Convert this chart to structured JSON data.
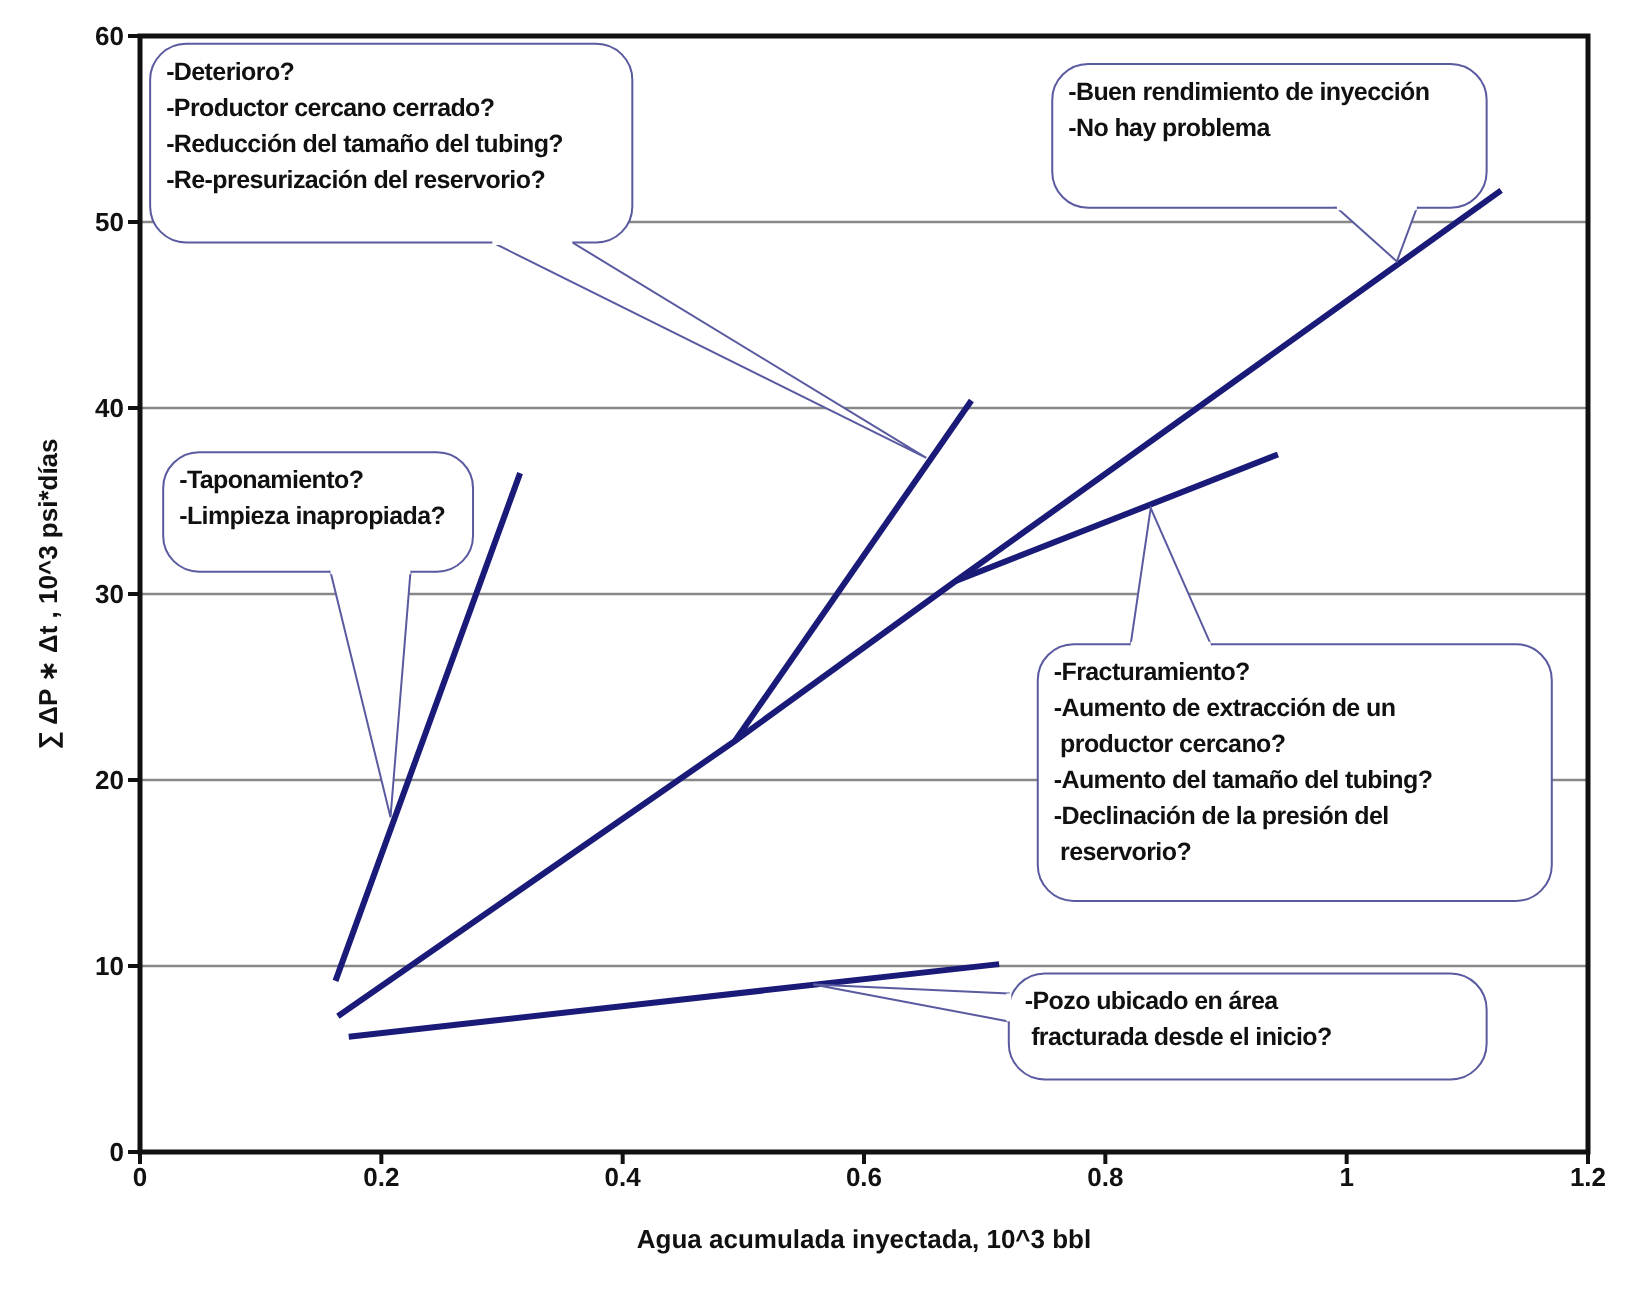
{
  "chart_data": {
    "type": "line",
    "xlabel": "Agua acumulada inyectada, 10^3 bbl",
    "ylabel": "∑ ΔP ∗ Δt , 10^3 psi*días",
    "xlim": [
      0,
      1.2
    ],
    "xticks": [
      0,
      0.2,
      0.4,
      0.6,
      0.8,
      1,
      1.2
    ],
    "ylim": [
      0,
      60
    ],
    "yticks": [
      0,
      10,
      20,
      30,
      40,
      50,
      60
    ],
    "grid": "y",
    "legend": false,
    "marker": "none",
    "line_style": "solid",
    "series": [
      {
        "color": "#1a1a78",
        "x": [
          0.162,
          0.315
        ],
        "values": [
          9.2,
          36.5
        ]
      },
      {
        "color": "#1a1a78",
        "x": [
          0.164,
          0.493,
          0.676,
          1.128
        ],
        "values": [
          7.3,
          22.1,
          30.7,
          51.7
        ]
      },
      {
        "color": "#1a1a78",
        "x": [
          0.493,
          0.689
        ],
        "values": [
          22.1,
          40.4
        ]
      },
      {
        "color": "#1a1a78",
        "x": [
          0.676,
          0.943
        ],
        "values": [
          30.7,
          37.5
        ]
      },
      {
        "color": "#1a1a78",
        "x": [
          0.173,
          0.712
        ],
        "values": [
          6.2,
          10.1
        ]
      }
    ],
    "annotations": [
      "-Deterioro?\n-Productor cercano cerrado?\n-Reducción del tamaño del tubing?\n-Re-presurización del reservorio?",
      "-Taponamiento?\n-Limpieza inapropiada?",
      "-Buen rendimiento de inyección\n-No hay problema",
      "-Fracturamiento?\n-Aumento de extracción de un\n productor cercano?\n-Aumento del tamaño del tubing?\n-Declinación de la presión del\n reservorio?",
      "-Pozo ubicado en área\n fracturada desde el inicio?"
    ]
  }
}
